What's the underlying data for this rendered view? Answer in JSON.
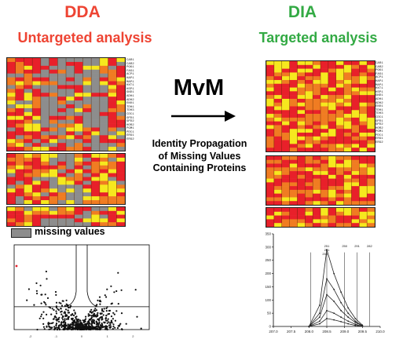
{
  "left": {
    "title": "DDA",
    "subtitle": "Untargeted analysis",
    "legend": "missing values",
    "gene_labels": [
      "CAR1",
      "CAR2",
      "PGK1",
      "FAS1",
      "ACP1",
      "HAP1",
      "MAP1",
      "HXT1",
      "HSP1",
      "GND1",
      "ADH1",
      "ADH2",
      "ENO1",
      "TDH1",
      "TDH3",
      "CDC1",
      "GPD1",
      "GPD2",
      "HOR2",
      "PGM1",
      "PDC1",
      "ERG1",
      "ERG2"
    ]
  },
  "right": {
    "title": "DIA",
    "subtitle": "Targeted analysis",
    "gene_labels": [
      "CAR1",
      "CAR2",
      "PGK1",
      "FAS1",
      "ACP1",
      "HAP1",
      "MAP1",
      "HXT1",
      "HSP1",
      "GND1",
      "ADH1",
      "ADH2",
      "ENO1",
      "TDH1",
      "TDH3",
      "CDC1",
      "GPD1",
      "GPD2",
      "HOR2",
      "PGM1",
      "PDC1",
      "ERG1",
      "ERG2"
    ]
  },
  "center": {
    "method": "MvM",
    "description": "Identity Propagation of Missing Values Containing Proteins"
  },
  "colors": {
    "red": "#e8202a",
    "orange": "#f07c22",
    "yellow": "#f6e81e",
    "gray": "#8d8d8d",
    "dda_title": "#ee4433",
    "untargeted": "#ee4433",
    "dia_title": "#33aa44",
    "targeted": "#33aa44"
  },
  "chart_data": [
    {
      "type": "scatter",
      "title": "",
      "xlabel": "",
      "ylabel": "",
      "xlim": [
        -3,
        3
      ],
      "ylim": [
        0,
        10
      ],
      "grid": false,
      "tick_labels_x": [
        "-2",
        "-1",
        "0",
        "1",
        "2"
      ],
      "points_estimate": "dense volcano distribution centred at x=0 with vertical thresholds near x=-0.3 and x=0.3 and a horizontal threshold near y=2"
    },
    {
      "type": "line",
      "title": "",
      "xlabel": "",
      "ylabel": "",
      "xlim": [
        207.0,
        210.0
      ],
      "ylim": [
        0,
        350
      ],
      "x_ticks": [
        "207.0",
        "207.5",
        "208.0",
        "208.5",
        "209.0",
        "209.5",
        "210.0"
      ],
      "y_ticks": [
        "0",
        "50",
        "100",
        "150",
        "200",
        "250",
        "300",
        "350"
      ],
      "peak_labels": [
        "251",
        "261",
        "250",
        "291",
        "282",
        "201"
      ],
      "series": [
        {
          "values_x": [
            208.0,
            208.3,
            208.5,
            208.7,
            208.9,
            209.1,
            209.3,
            209.5
          ],
          "values_y": [
            0,
            80,
            290,
            200,
            130,
            70,
            30,
            5
          ]
        },
        {
          "values_x": [
            208.0,
            208.3,
            208.5,
            208.7,
            208.9,
            209.1,
            209.3,
            209.5
          ],
          "values_y": [
            0,
            50,
            180,
            140,
            90,
            50,
            20,
            3
          ]
        },
        {
          "values_x": [
            208.0,
            208.3,
            208.5,
            208.7,
            208.9,
            209.1,
            209.3,
            209.5
          ],
          "values_y": [
            0,
            35,
            120,
            95,
            60,
            35,
            15,
            2
          ]
        },
        {
          "values_x": [
            208.0,
            208.3,
            208.5,
            208.7,
            208.9,
            209.1,
            209.3,
            209.5
          ],
          "values_y": [
            0,
            20,
            60,
            50,
            35,
            20,
            8,
            1
          ]
        },
        {
          "values_x": [
            208.0,
            208.3,
            208.5,
            208.7,
            208.9,
            209.1,
            209.3,
            209.5
          ],
          "values_y": [
            0,
            10,
            30,
            25,
            18,
            10,
            4,
            1
          ]
        }
      ]
    }
  ]
}
